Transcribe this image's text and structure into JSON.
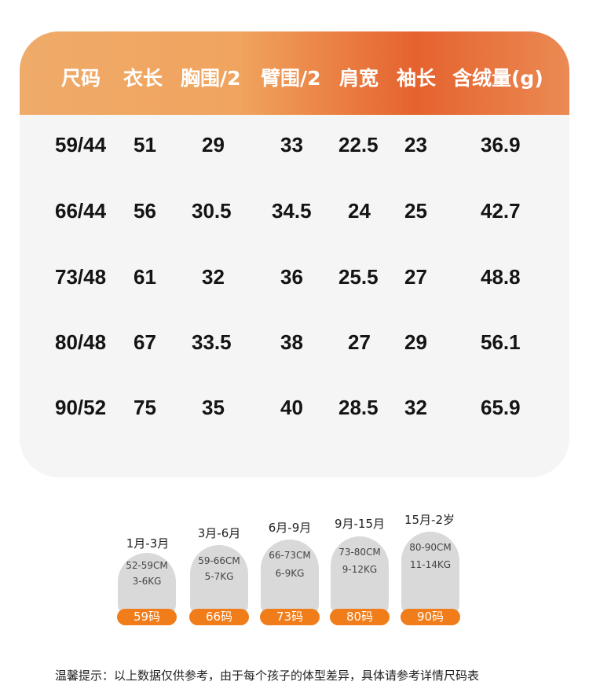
{
  "table": {
    "headers": [
      "尺码",
      "衣长",
      "胸围/2",
      "臂围/2",
      "肩宽",
      "袖长",
      "含绒量(g)"
    ],
    "rows": [
      [
        "59/44",
        "51",
        "29",
        "33",
        "22.5",
        "23",
        "36.9"
      ],
      [
        "66/44",
        "56",
        "30.5",
        "34.5",
        "24",
        "25",
        "42.7"
      ],
      [
        "73/48",
        "61",
        "32",
        "36",
        "25.5",
        "27",
        "48.8"
      ],
      [
        "80/48",
        "67",
        "33.5",
        "38",
        "27",
        "29",
        "56.1"
      ],
      [
        "90/52",
        "75",
        "35",
        "40",
        "28.5",
        "32",
        "65.9"
      ]
    ]
  },
  "guide": [
    {
      "age": "1月-3月",
      "height": "52-59CM",
      "weight": "3-6KG",
      "size": "59码"
    },
    {
      "age": "3月-6月",
      "height": "59-66CM",
      "weight": "5-7KG",
      "size": "66码"
    },
    {
      "age": "6月-9月",
      "height": "66-73CM",
      "weight": "6-9KG",
      "size": "73码"
    },
    {
      "age": "9月-15月",
      "height": "73-80CM",
      "weight": "9-12KG",
      "size": "80码"
    },
    {
      "age": "15月-2岁",
      "height": "80-90CM",
      "weight": "11-14KG",
      "size": "90码"
    }
  ],
  "tip": "温馨提示：以上数据仅供参考，由于每个孩子的体型差异，具体请参考详情尺码表",
  "colors": {
    "header_gradient_start": "#efab6a",
    "header_gradient_mid": "#e5622e",
    "size_tag": "#f07d1a",
    "card_bg": "#f5f5f5",
    "pill_bg": "#d9d9d9"
  }
}
